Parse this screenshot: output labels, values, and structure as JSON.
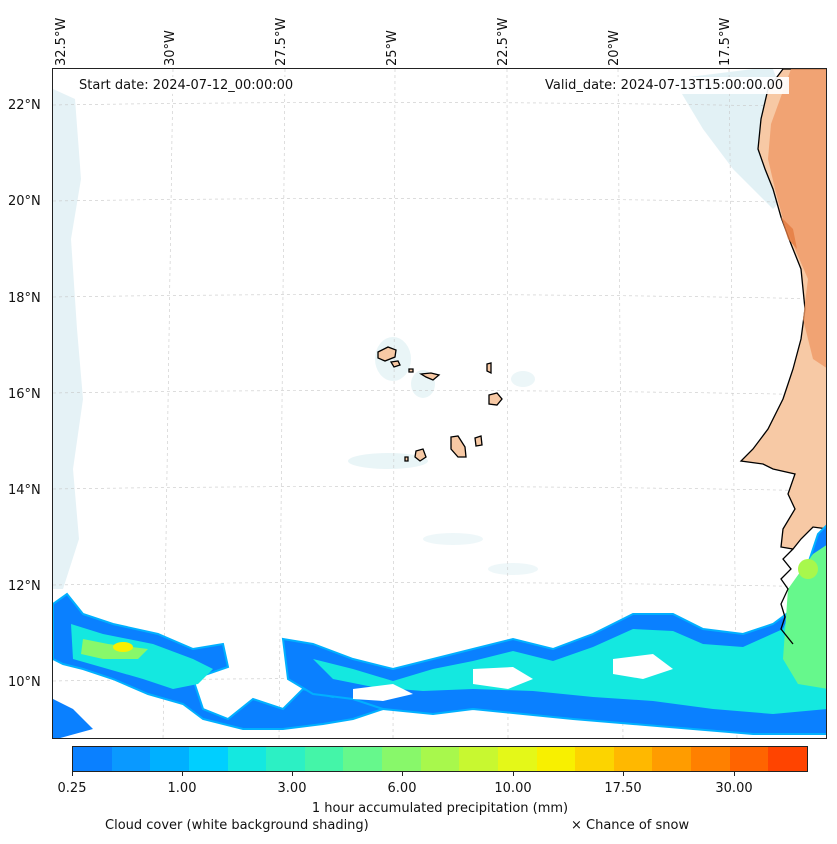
{
  "map": {
    "start_date": "Start date: 2024-07-12_00:00:00",
    "valid_date": "Valid_date: 2024-07-13T15:00:00.00",
    "longitude_labels": [
      "32.5°W",
      "30°W",
      "27.5°W",
      "25°W",
      "22.5°W",
      "20°W",
      "17.5°W"
    ],
    "latitude_labels": [
      "22°N",
      "20°N",
      "18°N",
      "16°N",
      "14°N",
      "12°N",
      "10°N"
    ],
    "features": [
      "cape-verde-islands",
      "west-africa-coastline",
      "precipitation-band",
      "cloud-cover-shading",
      "surface-temperature-shading"
    ]
  },
  "colorbar": {
    "title": "1 hour accumulated precipitation (mm)",
    "tick_labels": [
      "0.25",
      "1.00",
      "3.00",
      "6.00",
      "10.00",
      "17.50",
      "30.00"
    ],
    "colors": [
      "#0a80ff",
      "#0a99ff",
      "#00b0ff",
      "#00cfff",
      "#14e8e0",
      "#2cf0c4",
      "#44f5a8",
      "#66f88c",
      "#88f86a",
      "#a8f84c",
      "#c8f830",
      "#e4f818",
      "#f8f000",
      "#fcd400",
      "#ffb800",
      "#ff9c00",
      "#ff8000",
      "#ff6400",
      "#ff4400"
    ]
  },
  "legend": {
    "cloud_cover": "Cloud cover (white background shading)",
    "snow": "× Chance of snow"
  },
  "colors": {
    "land_fill": "#f7c9a5",
    "land_warm": "#ef9a67",
    "cloud_shade": "#cfe8ee",
    "coastline": "#000000",
    "grid": "#c8c8c8"
  }
}
